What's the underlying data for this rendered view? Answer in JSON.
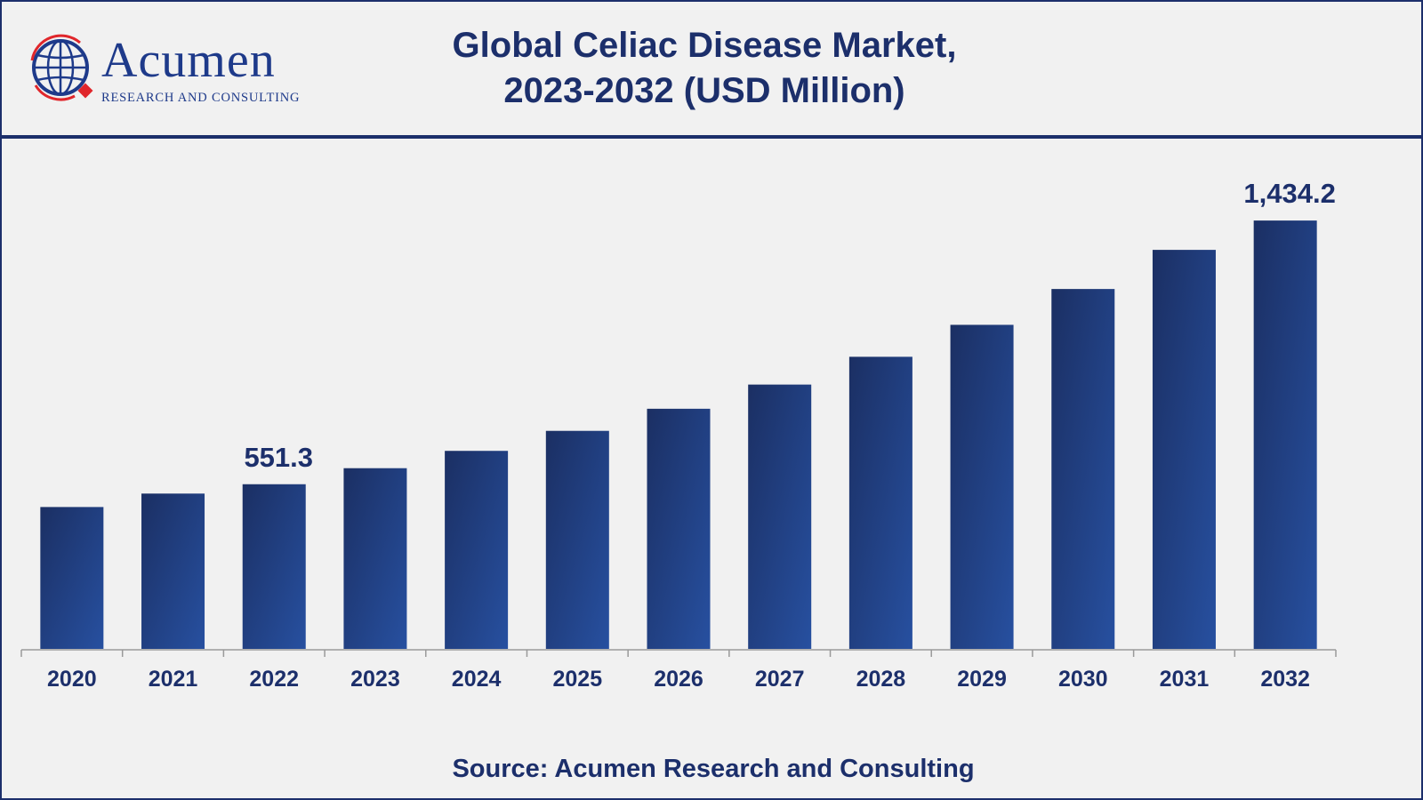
{
  "brand": {
    "name": "Acumen",
    "tagline": "RESEARCH AND CONSULTING",
    "colors": {
      "navy": "#1c2f6b",
      "bar_dark": "#1b2f63",
      "bar_light": "#2750a0",
      "logo_red": "#e0262b"
    }
  },
  "title": {
    "line1": "Global Celiac Disease Market,",
    "line2": "2023-2032 (USD Million)"
  },
  "source": "Source: Acumen Research and Consulting",
  "chart_data": {
    "type": "bar",
    "categories": [
      "2020",
      "2021",
      "2022",
      "2023",
      "2024",
      "2025",
      "2026",
      "2027",
      "2028",
      "2029",
      "2030",
      "2031",
      "2032"
    ],
    "values": [
      475,
      520,
      551.3,
      605,
      663,
      730,
      804,
      885,
      978,
      1085,
      1205,
      1336,
      1434.2
    ],
    "data_labels": [
      {
        "index": 2,
        "text": "551.3"
      },
      {
        "index": 12,
        "text": "1,434.2"
      }
    ],
    "ylim": [
      0,
      1500
    ],
    "grid": false,
    "legend": "none"
  }
}
